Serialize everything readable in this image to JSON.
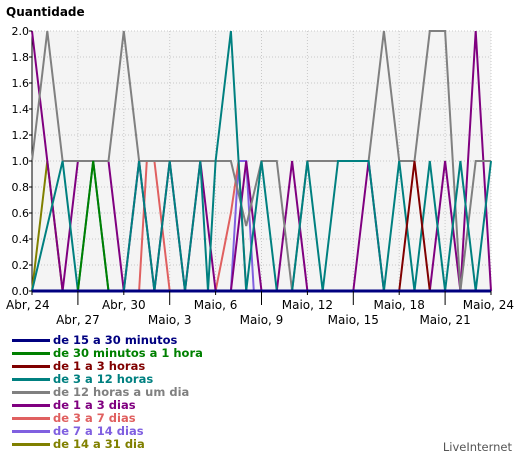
{
  "chart_data": {
    "type": "line",
    "ylabel": "Quantidade",
    "ylim": [
      0,
      2.0
    ],
    "yticks": [
      "0.0",
      "0.2",
      "0.4",
      "0.6",
      "0.8",
      "1.0",
      "1.2",
      "1.4",
      "1.6",
      "1.8",
      "2.0"
    ],
    "ytick_values": [
      0,
      0.2,
      0.4,
      0.6,
      0.8,
      1.0,
      1.2,
      1.4,
      1.6,
      1.8,
      2.0
    ],
    "x_tick_labels": [
      "Abr, 24",
      "Abr, 27",
      "Abr, 30",
      "Maio, 3",
      "Maio, 6",
      "Maio, 9",
      "Maio, 12",
      "Maio, 15",
      "Maio, 18",
      "Maio, 21",
      "Maio, 24"
    ],
    "x_range_days": [
      0,
      30
    ],
    "grid": true,
    "legend_position": "bottom-left",
    "series": [
      {
        "name": "de 15 a 30 minutos",
        "color": "#000080",
        "points": [
          [
            0,
            0
          ],
          [
            30,
            0
          ]
        ]
      },
      {
        "name": "de 30 minutos a 1 hora",
        "color": "#008000",
        "points": [
          [
            0,
            0
          ],
          [
            3,
            0
          ],
          [
            4,
            1
          ],
          [
            5,
            0
          ],
          [
            30,
            0
          ]
        ]
      },
      {
        "name": "de 1 a 3 horas",
        "color": "#800000",
        "points": [
          [
            0,
            0
          ],
          [
            24,
            0
          ],
          [
            25,
            1
          ],
          [
            26,
            0
          ],
          [
            30,
            0
          ]
        ]
      },
      {
        "name": "de 3 a 12 horas",
        "color": "#008080",
        "points": [
          [
            0,
            0
          ],
          [
            2,
            1
          ],
          [
            3,
            0
          ],
          [
            4,
            1
          ],
          [
            5,
            0
          ],
          [
            6,
            0
          ],
          [
            7,
            1
          ],
          [
            8,
            0
          ],
          [
            9,
            1
          ],
          [
            10,
            0
          ],
          [
            11,
            1
          ],
          [
            11.5,
            0
          ],
          [
            12,
            1
          ],
          [
            13,
            2
          ],
          [
            14,
            0
          ],
          [
            15,
            1
          ],
          [
            16,
            0
          ],
          [
            17,
            0
          ],
          [
            18,
            1
          ],
          [
            19,
            0
          ],
          [
            20,
            1
          ],
          [
            21,
            1
          ],
          [
            22,
            1
          ],
          [
            23,
            0
          ],
          [
            24,
            1
          ],
          [
            25,
            0
          ],
          [
            26,
            1
          ],
          [
            27,
            0
          ],
          [
            28,
            1
          ],
          [
            29,
            0
          ],
          [
            30,
            1
          ]
        ]
      },
      {
        "name": "de 12 horas a um dia",
        "color": "#808080",
        "points": [
          [
            0,
            1
          ],
          [
            1,
            2
          ],
          [
            2,
            1
          ],
          [
            3,
            1
          ],
          [
            4,
            1
          ],
          [
            5,
            1
          ],
          [
            6,
            2
          ],
          [
            7,
            1
          ],
          [
            8,
            1
          ],
          [
            9,
            1
          ],
          [
            10,
            1
          ],
          [
            11,
            1
          ],
          [
            12,
            1
          ],
          [
            13,
            1
          ],
          [
            14,
            0.5
          ],
          [
            15,
            1
          ],
          [
            16,
            1
          ],
          [
            17,
            0
          ],
          [
            18,
            1
          ],
          [
            19,
            1
          ],
          [
            20,
            1
          ],
          [
            21,
            1
          ],
          [
            22,
            1
          ],
          [
            23,
            2
          ],
          [
            24,
            1
          ],
          [
            25,
            1
          ],
          [
            26,
            2
          ],
          [
            27,
            2
          ],
          [
            28,
            0
          ],
          [
            29,
            1
          ],
          [
            30,
            1
          ]
        ]
      },
      {
        "name": "de 1 a 3 dias",
        "color": "#800080",
        "points": [
          [
            0,
            2
          ],
          [
            1,
            1
          ],
          [
            2,
            0
          ],
          [
            3,
            1
          ],
          [
            4,
            1
          ],
          [
            5,
            1
          ],
          [
            6,
            0
          ],
          [
            7,
            1
          ],
          [
            8,
            0
          ],
          [
            9,
            1
          ],
          [
            10,
            0
          ],
          [
            11,
            1
          ],
          [
            12,
            0
          ],
          [
            13,
            0
          ],
          [
            14,
            1
          ],
          [
            15,
            0
          ],
          [
            16,
            0
          ],
          [
            17,
            1
          ],
          [
            18,
            0
          ],
          [
            19,
            0
          ],
          [
            20,
            0
          ],
          [
            21,
            0
          ],
          [
            22,
            1
          ],
          [
            23,
            0
          ],
          [
            24,
            0
          ],
          [
            25,
            0
          ],
          [
            26,
            0
          ],
          [
            27,
            1
          ],
          [
            28,
            0
          ],
          [
            28.5,
            1
          ],
          [
            29,
            2
          ],
          [
            30,
            0
          ]
        ]
      },
      {
        "name": "de 3 a 7 dias",
        "color": "#e06060",
        "points": [
          [
            0,
            0
          ],
          [
            7,
            0
          ],
          [
            7.5,
            1
          ],
          [
            8,
            1
          ],
          [
            9,
            0
          ],
          [
            12,
            0
          ],
          [
            12.5,
            0.3
          ],
          [
            13,
            0.6
          ],
          [
            13.5,
            1
          ],
          [
            14,
            0
          ],
          [
            30,
            0
          ]
        ]
      },
      {
        "name": "de 7 a 14 dias",
        "color": "#8060e0",
        "points": [
          [
            0,
            0
          ],
          [
            13,
            0
          ],
          [
            13.5,
            1
          ],
          [
            14,
            1
          ],
          [
            14.5,
            0
          ],
          [
            30,
            0
          ]
        ]
      },
      {
        "name": "de 14 a 31 dia",
        "color": "#808000",
        "points": [
          [
            0,
            0
          ],
          [
            1,
            1
          ],
          [
            2,
            0
          ],
          [
            30,
            0
          ]
        ]
      }
    ]
  },
  "brand": "LiveInternet"
}
